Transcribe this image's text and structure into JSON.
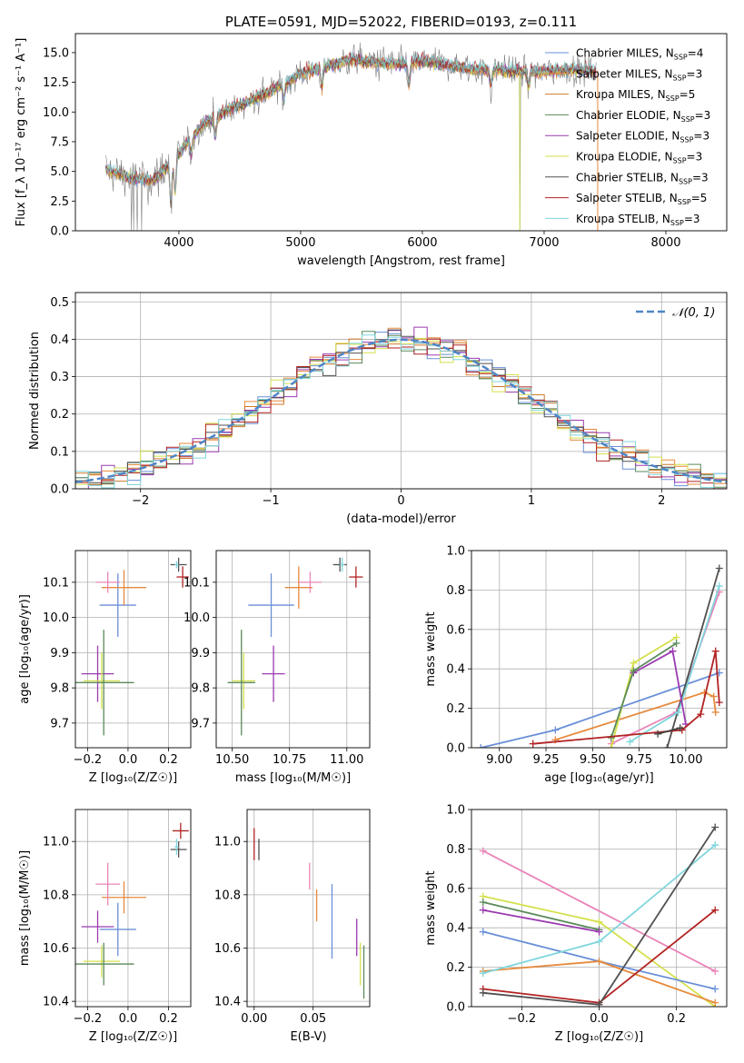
{
  "chart_data": [
    {
      "id": "spectrum",
      "type": "line",
      "title": "PLATE=0591, MJD=52022, FIBERID=0193, z=0.111",
      "xlabel": "wavelength [Angstrom, rest frame]",
      "ylabel": "Flux [f_λ 10⁻¹⁷ erg cm⁻² s⁻¹ A⁻¹]",
      "xlim": [
        3150,
        8500
      ],
      "ylim": [
        0,
        16.6
      ],
      "xticks": [
        4000,
        5000,
        6000,
        7000,
        8000
      ],
      "yticks": [
        0.0,
        2.5,
        5.0,
        7.5,
        10.0,
        12.5,
        15.0
      ],
      "legend_loc": "right",
      "legend": [
        "Chabrier MILES, N_SSP=4",
        "Salpeter MILES, N_SSP=3",
        "Kroupa MILES, N_SSP=5",
        "Chabrier ELODIE, N_SSP=3",
        "Salpeter ELODIE, N_SSP=3",
        "Kroupa ELODIE, N_SSP=3",
        "Chabrier STELIB, N_SSP=3",
        "Salpeter STELIB, N_SSP=5",
        "Kroupa STELIB, N_SSP=3"
      ],
      "data_color": "#808080",
      "model_colors": [
        "#6a8fd8",
        "#e68a3c",
        "#d07a2a",
        "#5a8a5a",
        "#9b3ab0",
        "#d4e04a",
        "#505050",
        "#b22222",
        "#7fd6dc"
      ],
      "continuum_x": [
        3400,
        3600,
        3800,
        4000,
        4200,
        4400,
        4600,
        4800,
        5000,
        5200,
        5400,
        5600,
        5800,
        6000,
        6200,
        6400,
        6600,
        6800,
        7000,
        7200,
        7400
      ],
      "continuum_y": [
        5.2,
        4.4,
        4.3,
        6.5,
        9.0,
        10.2,
        11.0,
        12.0,
        13.2,
        13.8,
        14.4,
        14.2,
        14.0,
        14.3,
        14.0,
        13.6,
        13.6,
        13.4,
        13.4,
        13.6,
        13.5
      ]
    },
    {
      "id": "residuals",
      "type": "histogram",
      "xlabel": "(data-model)/error",
      "ylabel": "Normed distribution",
      "xlim": [
        -2.5,
        2.5
      ],
      "ylim": [
        0,
        0.525
      ],
      "xticks": [
        -2,
        -1,
        0,
        1,
        2
      ],
      "yticks": [
        0.0,
        0.1,
        0.2,
        0.3,
        0.4,
        0.5
      ],
      "grid": true,
      "legend": [
        "𝒩(0, 1)"
      ],
      "reference_color": "#4f86c6",
      "bin_width": 0.1,
      "bins_start": -2.5
    },
    {
      "id": "age-vs-Z",
      "type": "errorbar",
      "xlabel": "Z [log₁₀(Z/Z☉)]",
      "ylabel": "age  [log₁₀(age/yr)]",
      "xlim": [
        -0.26,
        0.31
      ],
      "ylim": [
        9.63,
        10.19
      ],
      "xticks": [
        -0.2,
        0.0,
        0.2
      ],
      "yticks": [
        9.7,
        9.8,
        9.9,
        10.0,
        10.1
      ],
      "grid": true,
      "points": [
        {
          "x": -0.05,
          "xerr": 0.09,
          "y": 10.035,
          "yerr": 0.09,
          "color": "#6a8fd8"
        },
        {
          "x": -0.02,
          "xerr": 0.11,
          "y": 10.085,
          "yerr": 0.05,
          "color": "#e68a3c"
        },
        {
          "x": -0.1,
          "xerr": 0.06,
          "y": 10.1,
          "yerr": 0.03,
          "color": "#e984b8"
        },
        {
          "x": 0.25,
          "xerr": 0.04,
          "y": 10.15,
          "yerr": 0.02,
          "color": "#505050"
        },
        {
          "x": 0.27,
          "xerr": 0.03,
          "y": 10.115,
          "yerr": 0.03,
          "color": "#b22222"
        },
        {
          "x": 0.24,
          "xerr": 0.01,
          "y": 10.15,
          "yerr": 0.01,
          "color": "#7fd6dc"
        },
        {
          "x": -0.15,
          "xerr": 0.08,
          "y": 9.84,
          "yerr": 0.08,
          "color": "#9b3ab0"
        },
        {
          "x": -0.13,
          "xerr": 0.09,
          "y": 9.82,
          "yerr": 0.08,
          "color": "#d4e04a"
        },
        {
          "x": -0.12,
          "xerr": 0.15,
          "y": 9.815,
          "yerr": 0.15,
          "color": "#5a8a5a"
        }
      ]
    },
    {
      "id": "age-vs-mass",
      "type": "errorbar",
      "xlabel": "mass [log₁₀(M/M☉)]",
      "ylabel": "",
      "xlim": [
        10.43,
        11.1
      ],
      "ylim": [
        9.63,
        10.19
      ],
      "xticks": [
        10.5,
        10.75,
        11.0
      ],
      "yticks": [
        9.7,
        9.8,
        9.9,
        10.0,
        10.1
      ],
      "grid": true,
      "points": [
        {
          "x": 10.67,
          "xerr": 0.1,
          "y": 10.035,
          "yerr": 0.09,
          "color": "#6a8fd8"
        },
        {
          "x": 10.79,
          "xerr": 0.06,
          "y": 10.085,
          "yerr": 0.06,
          "color": "#e68a3c"
        },
        {
          "x": 10.84,
          "xerr": 0.05,
          "y": 10.1,
          "yerr": 0.03,
          "color": "#e984b8"
        },
        {
          "x": 10.97,
          "xerr": 0.03,
          "y": 10.15,
          "yerr": 0.02,
          "color": "#505050"
        },
        {
          "x": 11.04,
          "xerr": 0.03,
          "y": 10.115,
          "yerr": 0.03,
          "color": "#b22222"
        },
        {
          "x": 10.98,
          "xerr": 0.01,
          "y": 10.15,
          "yerr": 0.02,
          "color": "#7fd6dc"
        },
        {
          "x": 10.68,
          "xerr": 0.05,
          "y": 9.84,
          "yerr": 0.08,
          "color": "#9b3ab0"
        },
        {
          "x": 10.55,
          "xerr": 0.05,
          "y": 9.82,
          "yerr": 0.08,
          "color": "#d4e04a"
        },
        {
          "x": 10.54,
          "xerr": 0.06,
          "y": 9.815,
          "yerr": 0.15,
          "color": "#5a8a5a"
        }
      ]
    },
    {
      "id": "weight-vs-age",
      "type": "line",
      "xlabel": "age  [log₁₀(age/yr)]",
      "ylabel": "mass weight",
      "xlim": [
        8.85,
        10.22
      ],
      "ylim": [
        0.0,
        1.0
      ],
      "xticks": [
        9.0,
        9.25,
        9.5,
        9.75,
        10.0
      ],
      "yticks": [
        0.0,
        0.2,
        0.4,
        0.6,
        0.8,
        1.0
      ],
      "grid": true,
      "series": [
        {
          "color": "#6a8fd8",
          "points": [
            [
              8.9,
              0.0
            ],
            [
              9.3,
              0.09
            ],
            [
              10.18,
              0.38
            ]
          ]
        },
        {
          "color": "#e68a3c",
          "points": [
            [
              9.3,
              0.04
            ],
            [
              10.1,
              0.28
            ],
            [
              10.15,
              0.26
            ],
            [
              10.16,
              0.18
            ]
          ]
        },
        {
          "color": "#e984b8",
          "points": [
            [
              9.6,
              0.02
            ],
            [
              9.95,
              0.18
            ],
            [
              10.18,
              0.79
            ]
          ]
        },
        {
          "color": "#505050",
          "points": [
            [
              9.9,
              0.0
            ],
            [
              10.18,
              0.91
            ]
          ]
        },
        {
          "color": "#7fd6dc",
          "points": [
            [
              9.7,
              0.03
            ],
            [
              9.96,
              0.18
            ],
            [
              10.18,
              0.82
            ]
          ]
        },
        {
          "color": "#d4e04a",
          "points": [
            [
              9.6,
              0.0
            ],
            [
              9.72,
              0.43
            ],
            [
              9.95,
              0.56
            ]
          ]
        },
        {
          "color": "#9b3ab0",
          "points": [
            [
              9.72,
              0.38
            ],
            [
              9.93,
              0.49
            ],
            [
              10.0,
              0.12
            ]
          ]
        },
        {
          "color": "#5a8a5a",
          "points": [
            [
              9.6,
              0.05
            ],
            [
              9.72,
              0.39
            ],
            [
              9.95,
              0.53
            ]
          ]
        },
        {
          "color": "#b22222",
          "points": [
            [
              9.18,
              0.02
            ],
            [
              9.98,
              0.09
            ],
            [
              10.08,
              0.17
            ],
            [
              10.16,
              0.49
            ],
            [
              10.18,
              0.23
            ]
          ]
        },
        {
          "color": "#404040",
          "points": [
            [
              9.85,
              0.07
            ],
            [
              9.97,
              0.1
            ]
          ]
        }
      ]
    },
    {
      "id": "mass-vs-Z",
      "type": "errorbar",
      "xlabel": "Z [log₁₀(Z/Z☉)]",
      "ylabel": "mass [log₁₀(M/M☉)]",
      "xlim": [
        -0.26,
        0.31
      ],
      "ylim": [
        10.38,
        11.12
      ],
      "xticks": [
        -0.2,
        0.0,
        0.2
      ],
      "yticks": [
        10.4,
        10.6,
        10.8,
        11.0
      ],
      "grid": true,
      "points": [
        {
          "x": -0.05,
          "xerr": 0.09,
          "y": 10.67,
          "yerr": 0.1,
          "color": "#6a8fd8"
        },
        {
          "x": -0.02,
          "xerr": 0.11,
          "y": 10.79,
          "yerr": 0.06,
          "color": "#e68a3c"
        },
        {
          "x": -0.1,
          "xerr": 0.06,
          "y": 10.84,
          "yerr": 0.08,
          "color": "#e984b8"
        },
        {
          "x": 0.25,
          "xerr": 0.04,
          "y": 10.97,
          "yerr": 0.03,
          "color": "#505050"
        },
        {
          "x": 0.26,
          "xerr": 0.04,
          "y": 11.04,
          "yerr": 0.03,
          "color": "#b22222"
        },
        {
          "x": 0.24,
          "xerr": 0.01,
          "y": 10.98,
          "yerr": 0.03,
          "color": "#7fd6dc"
        },
        {
          "x": -0.15,
          "xerr": 0.08,
          "y": 10.68,
          "yerr": 0.06,
          "color": "#9b3ab0"
        },
        {
          "x": -0.13,
          "xerr": 0.09,
          "y": 10.55,
          "yerr": 0.06,
          "color": "#d4e04a"
        },
        {
          "x": -0.12,
          "xerr": 0.15,
          "y": 10.54,
          "yerr": 0.08,
          "color": "#5a8a5a"
        }
      ]
    },
    {
      "id": "mass-vs-ebv",
      "type": "errorbar",
      "xlabel": "E(B-V)",
      "ylabel": "",
      "xlim": [
        -0.006,
        0.098
      ],
      "ylim": [
        10.38,
        11.12
      ],
      "xticks": [
        0.0,
        0.05
      ],
      "yticks": [
        10.4,
        10.6,
        10.8,
        11.0
      ],
      "grid": true,
      "points": [
        {
          "x": 0.066,
          "xerr": 0,
          "y": 10.7,
          "yerr": 0.14,
          "color": "#6a8fd8"
        },
        {
          "x": 0.053,
          "xerr": 0,
          "y": 10.76,
          "yerr": 0.06,
          "color": "#e68a3c"
        },
        {
          "x": 0.047,
          "xerr": 0,
          "y": 10.87,
          "yerr": 0.05,
          "color": "#e984b8"
        },
        {
          "x": 0.0,
          "xerr": 0,
          "y": 10.99,
          "yerr": 0.06,
          "color": "#b22222"
        },
        {
          "x": 0.004,
          "xerr": 0,
          "y": 10.97,
          "yerr": 0.04,
          "color": "#505050"
        },
        {
          "x": 0.087,
          "xerr": 0,
          "y": 10.64,
          "yerr": 0.07,
          "color": "#9b3ab0"
        },
        {
          "x": 0.09,
          "xerr": 0,
          "y": 10.54,
          "yerr": 0.08,
          "color": "#d4e04a"
        },
        {
          "x": 0.093,
          "xerr": 0,
          "y": 10.51,
          "yerr": 0.1,
          "color": "#5a8a5a"
        }
      ]
    },
    {
      "id": "weight-vs-Z",
      "type": "line",
      "xlabel": "Z [log₁₀(Z/Z☉)]",
      "ylabel": "mass weight",
      "xlim": [
        -0.33,
        0.33
      ],
      "ylim": [
        0.0,
        1.0
      ],
      "xticks": [
        -0.2,
        0.0,
        0.2
      ],
      "yticks": [
        0.0,
        0.2,
        0.4,
        0.6,
        0.8,
        1.0
      ],
      "grid": true,
      "series": [
        {
          "color": "#e984b8",
          "points": [
            [
              -0.3,
              0.79
            ],
            [
              0.3,
              0.18
            ]
          ]
        },
        {
          "color": "#d4e04a",
          "points": [
            [
              -0.3,
              0.56
            ],
            [
              0.0,
              0.43
            ],
            [
              0.3,
              0.0
            ]
          ]
        },
        {
          "color": "#5a8a5a",
          "points": [
            [
              -0.3,
              0.53
            ],
            [
              0.0,
              0.39
            ]
          ]
        },
        {
          "color": "#9b3ab0",
          "points": [
            [
              -0.3,
              0.49
            ],
            [
              0.0,
              0.38
            ]
          ]
        },
        {
          "color": "#6a8fd8",
          "points": [
            [
              -0.3,
              0.38
            ],
            [
              0.0,
              0.23
            ],
            [
              0.3,
              0.09
            ]
          ]
        },
        {
          "color": "#e68a3c",
          "points": [
            [
              -0.3,
              0.18
            ],
            [
              0.0,
              0.23
            ],
            [
              0.3,
              0.02
            ]
          ]
        },
        {
          "color": "#7fd6dc",
          "points": [
            [
              -0.3,
              0.17
            ],
            [
              0.0,
              0.33
            ],
            [
              0.3,
              0.82
            ]
          ]
        },
        {
          "color": "#b22222",
          "points": [
            [
              -0.3,
              0.09
            ],
            [
              0.0,
              0.02
            ],
            [
              0.3,
              0.49
            ]
          ]
        },
        {
          "color": "#505050",
          "points": [
            [
              -0.3,
              0.07
            ],
            [
              0.0,
              0.01
            ],
            [
              0.3,
              0.91
            ]
          ]
        }
      ]
    }
  ]
}
